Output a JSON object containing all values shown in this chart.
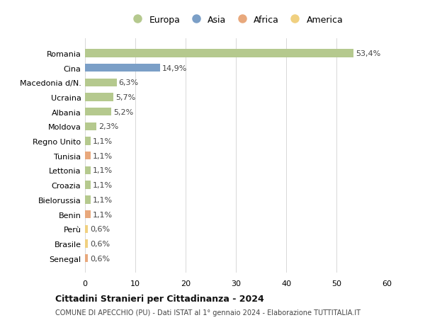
{
  "countries": [
    "Romania",
    "Cina",
    "Macedonia d/N.",
    "Ucraina",
    "Albania",
    "Moldova",
    "Regno Unito",
    "Tunisia",
    "Lettonia",
    "Croazia",
    "Bielorussia",
    "Benin",
    "Perù",
    "Brasile",
    "Senegal"
  ],
  "values": [
    53.4,
    14.9,
    6.3,
    5.7,
    5.2,
    2.3,
    1.1,
    1.1,
    1.1,
    1.1,
    1.1,
    1.1,
    0.6,
    0.6,
    0.6
  ],
  "labels": [
    "53,4%",
    "14,9%",
    "6,3%",
    "5,7%",
    "5,2%",
    "2,3%",
    "1,1%",
    "1,1%",
    "1,1%",
    "1,1%",
    "1,1%",
    "1,1%",
    "0,6%",
    "0,6%",
    "0,6%"
  ],
  "continents": [
    "Europa",
    "Asia",
    "Europa",
    "Europa",
    "Europa",
    "Europa",
    "Europa",
    "Africa",
    "Europa",
    "Europa",
    "Europa",
    "Africa",
    "America",
    "America",
    "Africa"
  ],
  "colors": {
    "Europa": "#b5c98e",
    "Asia": "#7b9fc7",
    "Africa": "#e8a87c",
    "America": "#f0d080"
  },
  "legend_order": [
    "Europa",
    "Asia",
    "Africa",
    "America"
  ],
  "title": "Cittadini Stranieri per Cittadinanza - 2024",
  "subtitle": "COMUNE DI APECCHIO (PU) - Dati ISTAT al 1° gennaio 2024 - Elaborazione TUTTITALIA.IT",
  "xlim": [
    0,
    60
  ],
  "xticks": [
    0,
    10,
    20,
    30,
    40,
    50,
    60
  ],
  "background_color": "#ffffff",
  "grid_color": "#d8d8d8"
}
